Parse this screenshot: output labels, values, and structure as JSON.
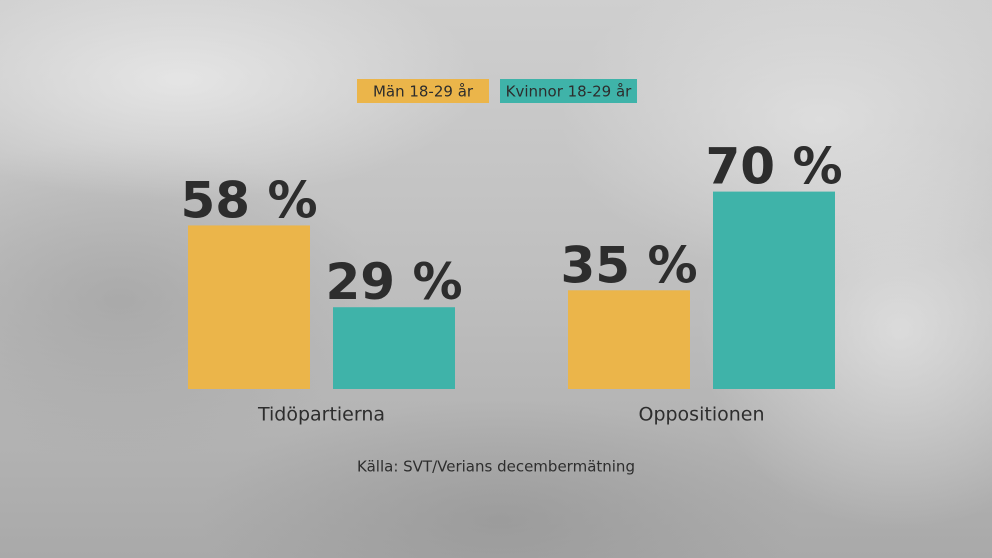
{
  "chart_data": {
    "type": "bar",
    "categories": [
      "Tidöpartierna",
      "Oppositionen"
    ],
    "series": [
      {
        "name": "Män 18-29 år",
        "color": "#ebb54a",
        "values": [
          58,
          35
        ],
        "value_labels": [
          "58 %",
          "35 %"
        ]
      },
      {
        "name": "Kvinnor 18-29 år",
        "color": "#3fb3a9",
        "values": [
          29,
          70
        ],
        "value_labels": [
          "29 %",
          "70 %"
        ]
      }
    ],
    "source": "Källa: SVT/Verians decembermätning"
  }
}
